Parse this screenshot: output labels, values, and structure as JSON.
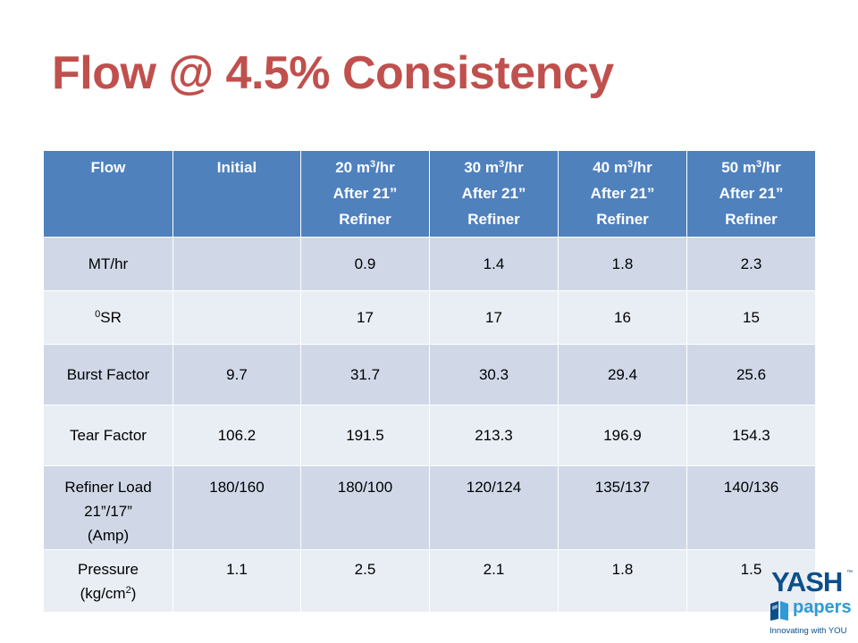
{
  "slide": {
    "title": "Flow @ 4.5% Consistency"
  },
  "table": {
    "headers": [
      {
        "line1": "Flow",
        "line2": "",
        "line3": ""
      },
      {
        "line1": "Initial",
        "line2": "",
        "line3": ""
      },
      {
        "line1_pre": "20 m",
        "line1_sup": "3",
        "line1_post": "/hr",
        "line2": "After 21”",
        "line3": "Refiner"
      },
      {
        "line1_pre": "30 m",
        "line1_sup": "3",
        "line1_post": "/hr",
        "line2": "After 21”",
        "line3": "Refiner"
      },
      {
        "line1_pre": "40 m",
        "line1_sup": "3",
        "line1_post": "/hr",
        "line2": "After 21”",
        "line3": "Refiner"
      },
      {
        "line1_pre": "50 m",
        "line1_sup": "3",
        "line1_post": "/hr",
        "line2": "After 21”",
        "line3": "Refiner"
      }
    ],
    "rows": [
      {
        "label": "MT/hr",
        "cells": [
          "",
          "0.9",
          "1.4",
          "1.8",
          "2.3"
        ]
      },
      {
        "label_sup": "0",
        "label": "SR",
        "cells": [
          "",
          "17",
          "17",
          "16",
          "15"
        ]
      },
      {
        "label": "Burst Factor",
        "cells": [
          "9.7",
          "31.7",
          "30.3",
          "29.4",
          "25.6"
        ]
      },
      {
        "label": "Tear Factor",
        "cells": [
          "106.2",
          "191.5",
          "213.3",
          "196.9",
          "154.3"
        ]
      },
      {
        "label_line1": "Refiner Load",
        "label_line2": "21”/17”",
        "label_line3": "(Amp)",
        "cells": [
          "180/160",
          "180/100",
          "120/124",
          "135/137",
          "140/136"
        ]
      },
      {
        "label_line1": "Pressure",
        "label_line2_pre": "(kg/cm",
        "label_line2_sup": "2",
        "label_line2_post": ")",
        "cells": [
          "1.1",
          "2.5",
          "2.1",
          "1.8",
          "1.5"
        ]
      }
    ]
  },
  "logo": {
    "name": "YASH",
    "trademark": "™",
    "sub": "papers",
    "tagline": "Innovating with YOU",
    "colors": {
      "primary": "#0b4f8a",
      "secondary": "#2e9ad6"
    }
  },
  "colors": {
    "title": "#c0504d",
    "header_bg": "#4f81bd",
    "row_odd_bg": "#d0d8e8",
    "row_even_bg": "#e9edf4"
  }
}
